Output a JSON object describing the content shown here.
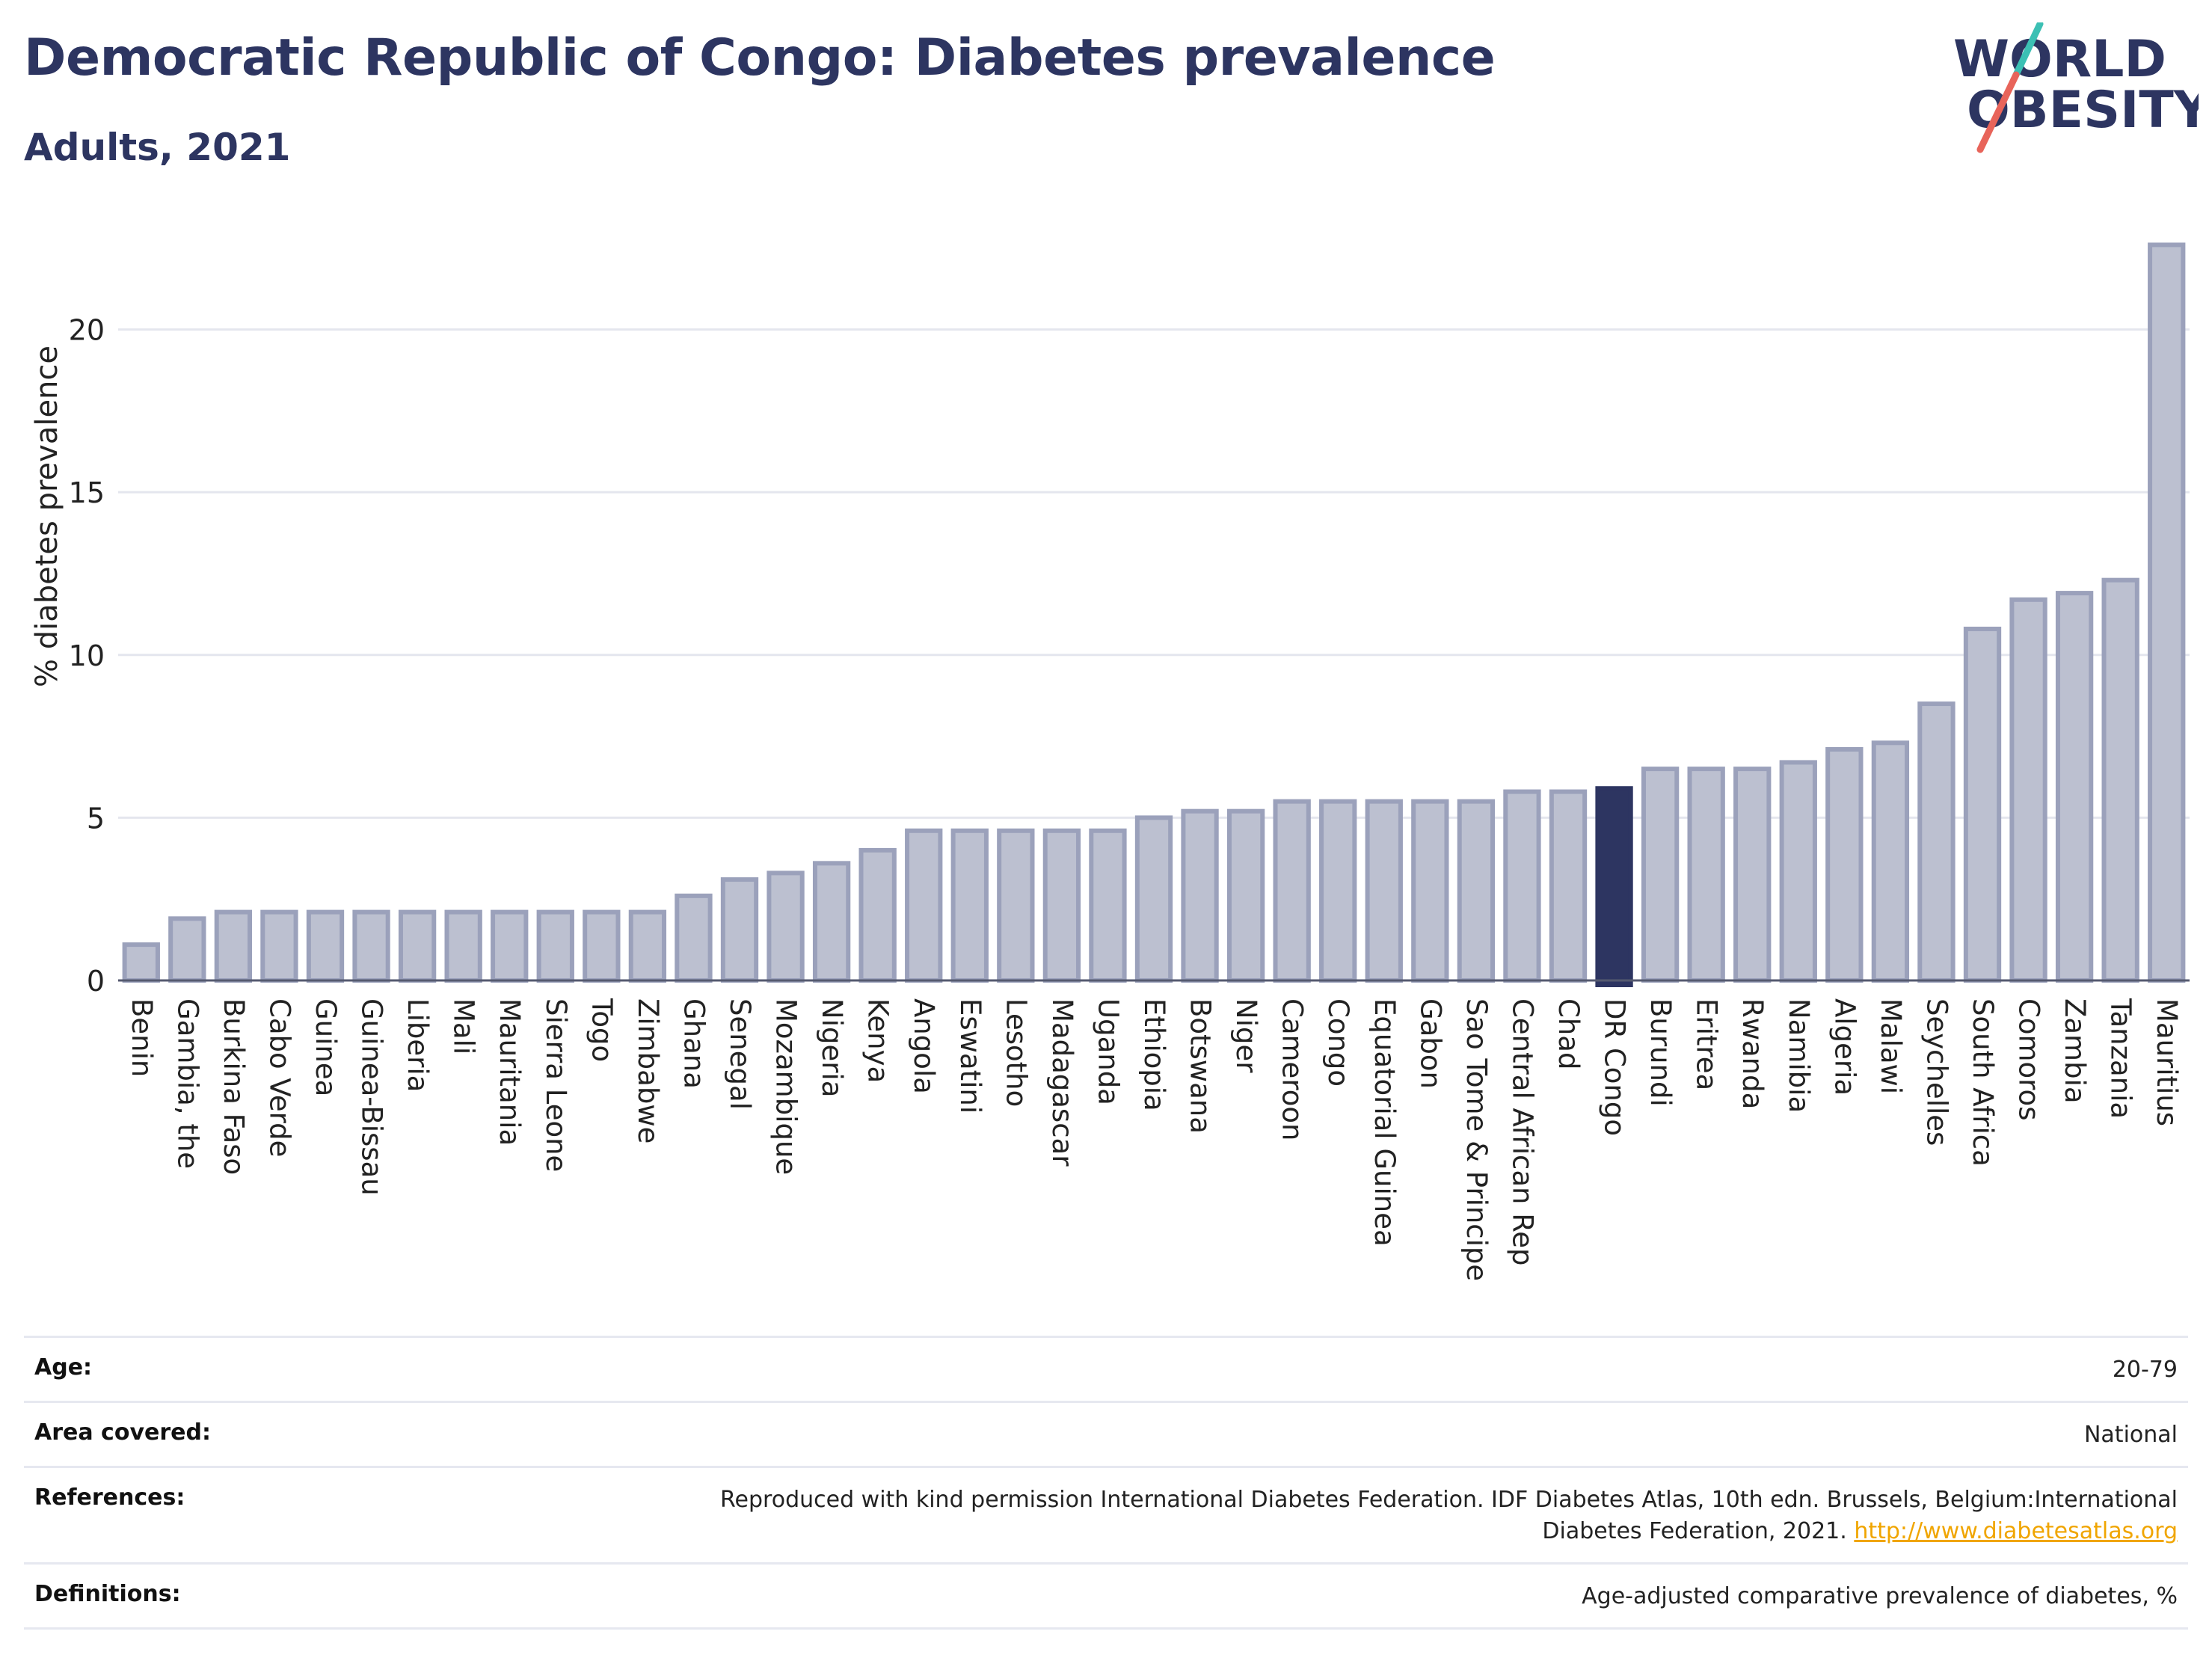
{
  "header": {
    "title": "Democratic Republic of Congo: Diabetes prevalence",
    "subtitle": "Adults, 2021"
  },
  "logo": {
    "line1": "WORLD",
    "line2": "OBESITY"
  },
  "colors": {
    "bar": "#bcc0d0",
    "bar_edge": "#9ba1bb",
    "highlight": "#2d3561",
    "text": "#2d3561",
    "link": "#f0a500",
    "slash_teal": "#3cc0b4",
    "slash_red": "#e8645a"
  },
  "chart_data": {
    "type": "bar",
    "ylabel": "% diabetes prevalence",
    "ylim": [
      0,
      23
    ],
    "yticks": [
      0,
      5,
      10,
      15,
      20
    ],
    "grid": true,
    "highlight": "DR Congo",
    "categories": [
      "Benin",
      "Gambia, the",
      "Burkina Faso",
      "Cabo Verde",
      "Guinea",
      "Guinea-Bissau",
      "Liberia",
      "Mali",
      "Mauritania",
      "Sierra Leone",
      "Togo",
      "Zimbabwe",
      "Ghana",
      "Senegal",
      "Mozambique",
      "Nigeria",
      "Kenya",
      "Angola",
      "Eswatini",
      "Lesotho",
      "Madagascar",
      "Uganda",
      "Ethiopia",
      "Botswana",
      "Niger",
      "Cameroon",
      "Congo",
      "Equatorial Guinea",
      "Gabon",
      "Sao Tome & Principe",
      "Central African Rep",
      "Chad",
      "DR Congo",
      "Burundi",
      "Eritrea",
      "Rwanda",
      "Namibia",
      "Algeria",
      "Malawi",
      "Seychelles",
      "South Africa",
      "Comoros",
      "Zambia",
      "Tanzania",
      "Mauritius"
    ],
    "values": [
      1.1,
      1.9,
      2.1,
      2.1,
      2.1,
      2.1,
      2.1,
      2.1,
      2.1,
      2.1,
      2.1,
      2.1,
      2.6,
      3.1,
      3.3,
      3.6,
      4.0,
      4.6,
      4.6,
      4.6,
      4.6,
      4.6,
      5.0,
      5.2,
      5.2,
      5.5,
      5.5,
      5.5,
      5.5,
      5.5,
      5.8,
      5.8,
      5.9,
      6.5,
      6.5,
      6.5,
      6.7,
      7.1,
      7.3,
      8.5,
      10.8,
      11.7,
      11.9,
      12.3,
      22.6
    ]
  },
  "meta": [
    {
      "label": "Age:",
      "value": "20-79"
    },
    {
      "label": "Area covered:",
      "value": "National"
    },
    {
      "label": "References:",
      "value": "Reproduced with kind permission International Diabetes Federation.  IDF Diabetes Atlas, 10th edn. Brussels, Belgium:International Diabetes Federation, 2021. ",
      "link": "http://www.diabetesatlas.org"
    },
    {
      "label": "Definitions:",
      "value": "Age-adjusted comparative prevalence of diabetes, %"
    }
  ]
}
